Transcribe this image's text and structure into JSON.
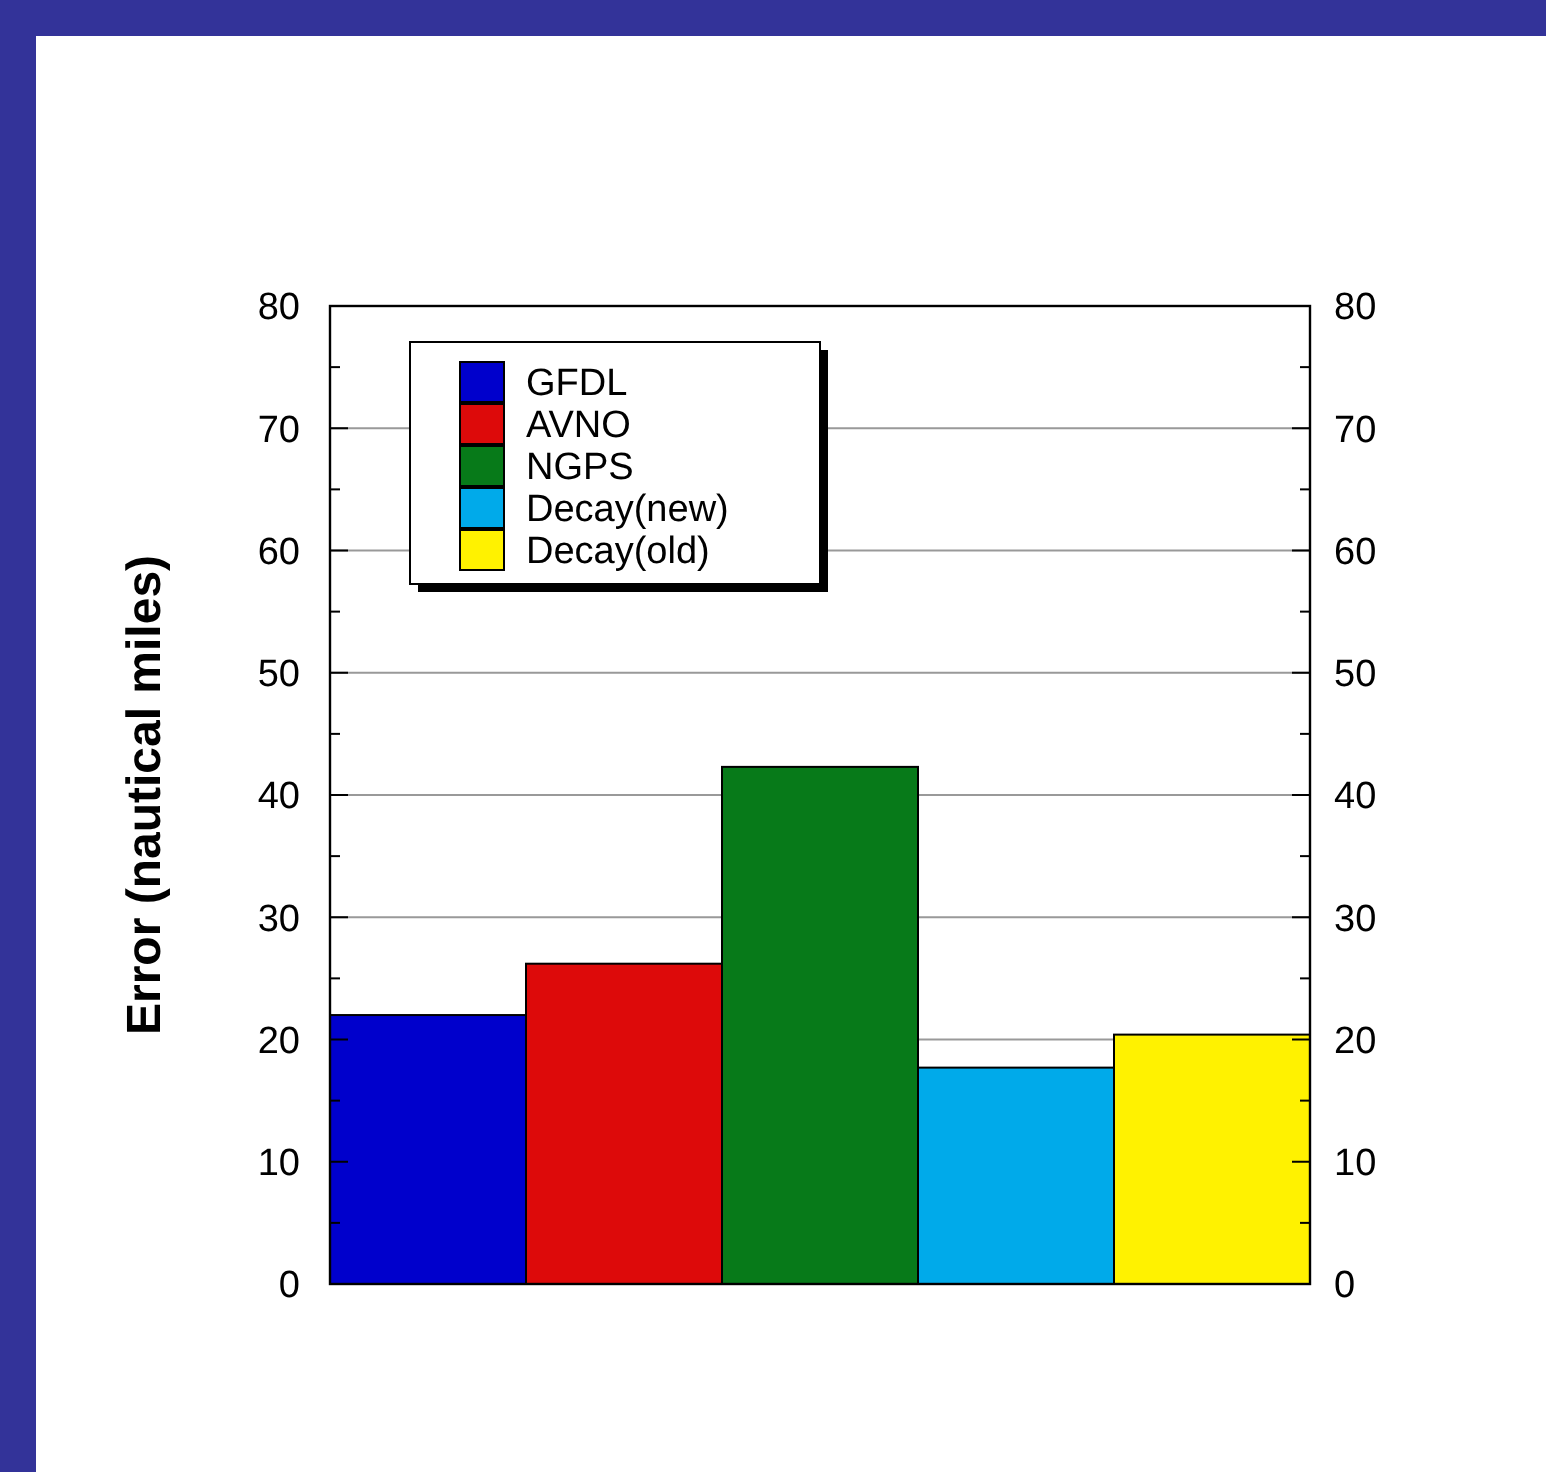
{
  "chart_data": {
    "type": "bar",
    "ylabel": "Error (nautical miles)",
    "categories": [
      null,
      null,
      null,
      null,
      null
    ],
    "series": [
      {
        "name": "GFDL",
        "color": "#0000cc",
        "values": [
          22.0,
          null,
          null,
          null,
          null
        ]
      },
      {
        "name": "AVNO",
        "color": "#dd0a0a",
        "values": [
          null,
          26.2,
          null,
          null,
          null
        ]
      },
      {
        "name": "NGPS",
        "color": "#077a19",
        "values": [
          null,
          null,
          42.3,
          null,
          null
        ]
      },
      {
        "name": "Decay(new)",
        "color": "#00aaea",
        "values": [
          null,
          null,
          null,
          17.7,
          null
        ]
      },
      {
        "name": "Decay(old)",
        "color": "#fff200",
        "values": [
          null,
          null,
          null,
          null,
          20.4
        ]
      }
    ],
    "ylim": [
      0,
      80
    ],
    "yticks": [
      0,
      10,
      20,
      30,
      40,
      50,
      60,
      70,
      80
    ],
    "y2lim": [
      0,
      80
    ],
    "y2ticks": [
      0,
      10,
      20,
      30,
      40,
      50,
      60,
      70,
      80
    ],
    "grid": "y",
    "legend": "top left",
    "tick_labels": "y"
  }
}
